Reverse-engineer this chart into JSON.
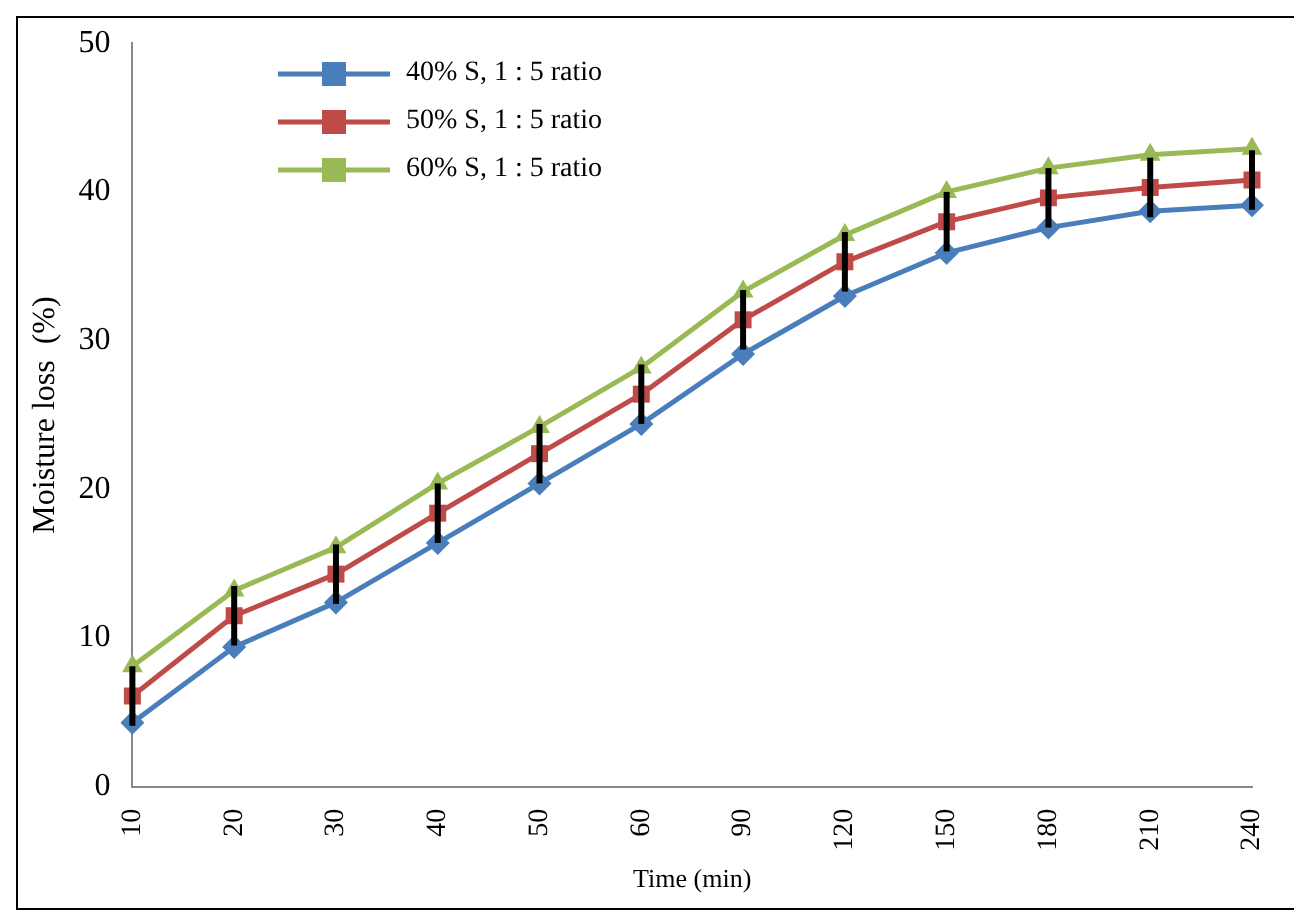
{
  "chart_data": {
    "type": "line",
    "xlabel": "Time (min)",
    "ylabel": "Moisture loss  (%)",
    "categories": [
      "10",
      "20",
      "30",
      "40",
      "50",
      "60",
      "90",
      "120",
      "150",
      "180",
      "210",
      "240"
    ],
    "ylim": [
      0,
      50
    ],
    "yticks": [
      0,
      10,
      20,
      30,
      40,
      50
    ],
    "grid": false,
    "legend": "top left",
    "line_style": "solid",
    "series": [
      {
        "name": "40% S, 1 : 5 ratio",
        "color": "#4a7ebb",
        "marker": "diamond",
        "values": [
          4.3,
          9.4,
          12.4,
          16.4,
          20.4,
          24.4,
          29.1,
          33,
          35.9,
          37.6,
          38.7,
          39.1
        ]
      },
      {
        "name": "50% S, 1 : 5 ratio",
        "color": "#be4b48",
        "marker": "square",
        "values": [
          6.1,
          11.5,
          14.3,
          18.4,
          22.4,
          26.4,
          31.4,
          35.3,
          38,
          39.6,
          40.3,
          40.8
        ],
        "errors": [
          2,
          2,
          2,
          2,
          2,
          2,
          2,
          2,
          2,
          2,
          2,
          2
        ]
      },
      {
        "name": "60% S, 1 : 5 ratio",
        "color": "#98b954",
        "marker": "triangle",
        "values": [
          8.1,
          13.2,
          16.1,
          20.4,
          24.2,
          28.2,
          33.3,
          37.1,
          40,
          41.6,
          42.5,
          42.9
        ]
      }
    ]
  }
}
